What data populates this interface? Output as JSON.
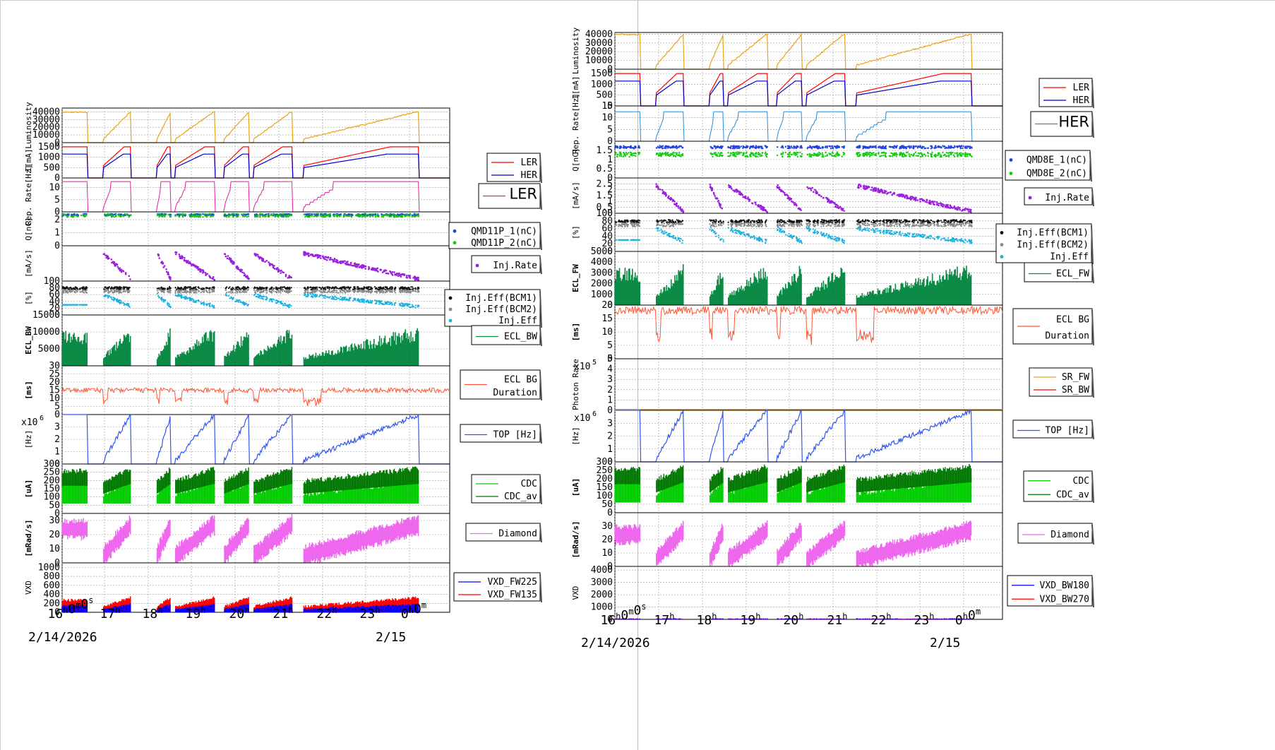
{
  "colors": {
    "luminosity": "#e8a317",
    "ler": "#ff0000",
    "her": "#0000cc",
    "rep_ler": "#e0209a",
    "rep_her": "#2a8ad4",
    "q1": "#2244dd",
    "q2": "#11cc11",
    "injrate": "#9a22dd",
    "eff_bcm1": "#111111",
    "eff_bcm2": "#888888",
    "eff": "#1ab0e0",
    "ecl": "#0a8a44",
    "bgdur": "#ff5533",
    "sr_fw": "#e8a317",
    "sr_bw": "#ff0000",
    "top": "#3355ee",
    "cdc": "#00cc00",
    "cdc_av": "#007700",
    "diamond": "#ee66ee",
    "vxd_a": "#0000ff",
    "vxd_b": "#ff0000"
  },
  "time_axis": {
    "first_tick": "16h0m0s",
    "ticks": [
      "17h",
      "18h",
      "19h",
      "20h",
      "21h",
      "22h",
      "23h",
      "0h0m"
    ],
    "date_start": "2/14/2026",
    "date_end": "2/15"
  },
  "chart_data": [
    {
      "id": "left",
      "type": "line",
      "x_range_hours": [
        16.0,
        24.2
      ],
      "panels": [
        {
          "name": "luminosity",
          "ylabel": "Luminosity",
          "ylim": [
            0,
            45000
          ],
          "yticks": [
            "40000",
            "30000",
            "20000",
            "10000",
            "0"
          ],
          "series": [
            {
              "values": [
                0
              ]
            }
          ]
        },
        {
          "name": "current",
          "ylabel": "I[mA]",
          "ylim": [
            0,
            1700
          ],
          "yticks": [
            "1500",
            "1000",
            "500",
            "0"
          ],
          "legend": [
            "LER",
            "HER"
          ],
          "series": [
            {
              "name": "LER"
            },
            {
              "name": "HER"
            }
          ]
        },
        {
          "name": "reprate",
          "ylabel": "Rep. Rate[Hz]",
          "ylim": [
            0,
            14
          ],
          "yticks": [
            "10",
            "5",
            "0"
          ],
          "legend": [
            "LER"
          ],
          "series": [
            {
              "name": "LER"
            }
          ]
        },
        {
          "name": "charge",
          "ylabel": "Q[nC]",
          "ylim": [
            0,
            2.6
          ],
          "yticks": [
            "2",
            "1",
            "0"
          ],
          "legend": [
            "QMD11P_1(nC)",
            "QMD11P_2(nC)"
          ],
          "series": [
            {
              "name": "QMD11P_1(nC)"
            },
            {
              "name": "QMD11P_2(nC)"
            }
          ]
        },
        {
          "name": "injrate",
          "ylabel": "[mA/s]",
          "ylim": [
            0,
            3
          ],
          "yticks": [],
          "legend": [
            "Inj.Rate"
          ],
          "series": [
            {
              "name": "Inj.Rate"
            }
          ]
        },
        {
          "name": "injeff",
          "ylabel": "[%]",
          "ylim": [
            0,
            100
          ],
          "yticks": [
            "100",
            "80",
            "60",
            "40",
            "20",
            "0"
          ],
          "legend": [
            "Inj.Eff(BCM1)",
            "Inj.Eff(BCM2)",
            "Inj.Eff"
          ],
          "series": [
            {
              "name": "Inj.Eff(BCM1)"
            },
            {
              "name": "Inj.Eff(BCM2)"
            },
            {
              "name": "Inj.Eff"
            }
          ]
        },
        {
          "name": "ecl",
          "ylabel": "ECL_BW",
          "ylim": [
            0,
            15000
          ],
          "yticks": [
            "15000",
            "10000",
            "5000"
          ],
          "legend": [
            "ECL_BW"
          ],
          "series": [
            {
              "name": "ECL_BW"
            }
          ]
        },
        {
          "name": "bgdur",
          "ylabel": "[ms]",
          "ylim": [
            0,
            30
          ],
          "yticks": [
            "30",
            "25",
            "20",
            "15",
            "10",
            "5",
            "0"
          ],
          "legend": [
            "ECL BG",
            "Duration"
          ],
          "series": [
            {
              "name": "ECL BG Duration"
            }
          ]
        },
        {
          "name": "top",
          "ylabel": "[Hz]",
          "multiplier": "x10",
          "multiplier_exp": "6",
          "ylim": [
            0,
            4
          ],
          "yticks": [
            "3",
            "2",
            "1",
            "0"
          ],
          "legend": [
            "TOP [Hz]"
          ],
          "series": [
            {
              "name": "TOP [Hz]"
            }
          ]
        },
        {
          "name": "cdc",
          "ylabel": "[uA]",
          "ylim": [
            0,
            300
          ],
          "yticks": [
            "300",
            "250",
            "200",
            "150",
            "100",
            "50",
            "0"
          ],
          "legend": [
            "CDC",
            "CDC_av"
          ],
          "series": [
            {
              "name": "CDC"
            },
            {
              "name": "CDC_av"
            }
          ]
        },
        {
          "name": "diamond",
          "ylabel": "[mRad/s]",
          "ylim": [
            0,
            35
          ],
          "yticks": [
            "30",
            "20",
            "10",
            "0"
          ],
          "legend": [
            "Diamond"
          ],
          "series": [
            {
              "name": "Diamond"
            }
          ]
        },
        {
          "name": "vxd",
          "ylabel": "VXD",
          "ylim": [
            0,
            1100
          ],
          "yticks": [
            "1000",
            "800",
            "600",
            "400",
            "200",
            "0"
          ],
          "legend": [
            "VXD_FW225",
            "VXD_FW135"
          ],
          "series": [
            {
              "name": "VXD_FW225"
            },
            {
              "name": "VXD_FW135"
            }
          ]
        }
      ]
    },
    {
      "id": "right",
      "type": "line",
      "x_range_hours": [
        16.0,
        24.2
      ],
      "panels": [
        {
          "name": "luminosity",
          "ylabel": "Luminosity",
          "ylim": [
            0,
            42000
          ],
          "yticks": [
            "40000",
            "30000",
            "20000",
            "10000",
            "0"
          ],
          "series": [
            {
              "values": [
                0
              ]
            }
          ]
        },
        {
          "name": "current",
          "ylabel": "I[mA]",
          "ylim": [
            0,
            1700
          ],
          "yticks": [
            "1500",
            "1000",
            "500",
            "0"
          ],
          "legend": [
            "LER",
            "HER"
          ],
          "series": [
            {
              "name": "LER"
            },
            {
              "name": "HER"
            }
          ]
        },
        {
          "name": "reprate",
          "ylabel": "Rep. Rate[Hz]",
          "ylim": [
            0,
            15
          ],
          "yticks": [
            "15",
            "10",
            "5",
            "0"
          ],
          "legend": [
            "HER"
          ],
          "series": [
            {
              "name": "HER"
            }
          ]
        },
        {
          "name": "charge",
          "ylabel": "Q[nC]",
          "ylim": [
            0,
            2
          ],
          "yticks": [
            "1.5",
            "1",
            "0.5",
            "0"
          ],
          "legend": [
            "QMD8E_1(nC)",
            "QMD8E_2(nC)"
          ],
          "series": [
            {
              "name": "QMD8E_1(nC)"
            },
            {
              "name": "QMD8E_2(nC)"
            }
          ]
        },
        {
          "name": "injrate",
          "ylabel": "[mA/s]",
          "ylim": [
            0,
            3
          ],
          "yticks": [
            "2.5",
            "2",
            "1.5",
            "1",
            "0.5",
            "0"
          ],
          "legend": [
            "Inj.Rate"
          ],
          "series": [
            {
              "name": "Inj.Rate"
            }
          ]
        },
        {
          "name": "injeff",
          "ylabel": "[%]",
          "ylim": [
            0,
            100
          ],
          "yticks": [
            "100",
            "80",
            "60",
            "40",
            "20",
            "0"
          ],
          "legend": [
            "Inj.Eff(BCM1)",
            "Inj.Eff(BCM2)",
            "Inj.Eff"
          ],
          "series": [
            {
              "name": "Inj.Eff(BCM1)"
            },
            {
              "name": "Inj.Eff(BCM2)"
            },
            {
              "name": "Inj.Eff"
            }
          ]
        },
        {
          "name": "ecl",
          "ylabel": "ECL_FW",
          "ylim": [
            0,
            5000
          ],
          "yticks": [
            "5000",
            "4000",
            "3000",
            "2000",
            "1000",
            "0"
          ],
          "legend": [
            "ECL_FW"
          ],
          "series": [
            {
              "name": "ECL_FW"
            }
          ]
        },
        {
          "name": "bgdur",
          "ylabel": "[ms]",
          "ylim": [
            0,
            20
          ],
          "yticks": [
            "20",
            "15",
            "10",
            "5",
            "0"
          ],
          "legend": [
            "ECL BG",
            "Duration"
          ],
          "series": [
            {
              "name": "ECL BG Duration"
            }
          ]
        },
        {
          "name": "photon",
          "ylabel": "Photon Rate",
          "multiplier": "x10",
          "multiplier_exp": "5",
          "ylim": [
            0,
            5
          ],
          "yticks": [
            "5",
            "4",
            "3",
            "2",
            "1",
            "0"
          ],
          "legend": [
            "SR_FW",
            "SR_BW"
          ],
          "series": [
            {
              "name": "SR_FW"
            },
            {
              "name": "SR_BW"
            }
          ]
        },
        {
          "name": "top",
          "ylabel": "[Hz]",
          "multiplier": "x10",
          "multiplier_exp": "6",
          "ylim": [
            0,
            4
          ],
          "yticks": [
            "3",
            "2",
            "1",
            "0"
          ],
          "legend": [
            "TOP [Hz]"
          ],
          "series": [
            {
              "name": "TOP [Hz]"
            }
          ]
        },
        {
          "name": "cdc",
          "ylabel": "[uA]",
          "ylim": [
            0,
            300
          ],
          "yticks": [
            "300",
            "250",
            "200",
            "150",
            "100",
            "50",
            "0"
          ],
          "legend": [
            "CDC",
            "CDC_av"
          ],
          "series": [
            {
              "name": "CDC"
            },
            {
              "name": "CDC_av"
            }
          ]
        },
        {
          "name": "diamond",
          "ylabel": "[mRad/s]",
          "ylim": [
            0,
            40
          ],
          "yticks": [
            "30",
            "20",
            "10",
            "0"
          ],
          "legend": [
            "Diamond"
          ],
          "series": [
            {
              "name": "Diamond"
            }
          ]
        },
        {
          "name": "vxd",
          "ylabel": "VXD",
          "ylim": [
            0,
            4300
          ],
          "yticks": [
            "4000",
            "3000",
            "2000",
            "1000",
            "0"
          ],
          "legend": [
            "VXD_BW180",
            "VXD_BW270"
          ],
          "series": [
            {
              "name": "VXD_BW180"
            },
            {
              "name": "VXD_BW270"
            }
          ]
        }
      ]
    }
  ]
}
